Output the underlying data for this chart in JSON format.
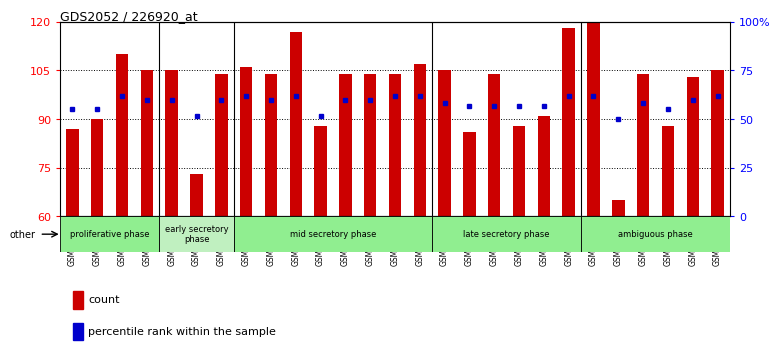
{
  "title": "GDS2052 / 226920_at",
  "samples": [
    "GSM109814",
    "GSM109815",
    "GSM109816",
    "GSM109817",
    "GSM109820",
    "GSM109821",
    "GSM109822",
    "GSM109824",
    "GSM109825",
    "GSM109826",
    "GSM109827",
    "GSM109828",
    "GSM109829",
    "GSM109830",
    "GSM109831",
    "GSM109834",
    "GSM109835",
    "GSM109836",
    "GSM109837",
    "GSM109838",
    "GSM109839",
    "GSM109818",
    "GSM109819",
    "GSM109823",
    "GSM109832",
    "GSM109833",
    "GSM109840"
  ],
  "counts": [
    87,
    90,
    110,
    105,
    105,
    73,
    104,
    106,
    104,
    117,
    88,
    104,
    104,
    104,
    107,
    105,
    86,
    104,
    88,
    91,
    118,
    120,
    65,
    104,
    88,
    103,
    105
  ],
  "percentiles_left_axis": [
    93,
    93,
    97,
    96,
    96,
    91,
    96,
    97,
    96,
    97,
    91,
    96,
    96,
    97,
    97,
    95,
    94,
    94,
    94,
    94,
    97,
    97,
    90,
    95,
    93,
    96,
    97
  ],
  "ylim_left": [
    60,
    120
  ],
  "yticks_left": [
    60,
    75,
    90,
    105,
    120
  ],
  "ylim_right": [
    0,
    100
  ],
  "yticks_right": [
    0,
    25,
    50,
    75,
    100
  ],
  "bar_color": "#cc0000",
  "dot_color": "#0000cc",
  "bg_color": "#ffffff",
  "phase_boundary_indices": [
    3.5,
    6.5,
    14.5,
    20.5
  ],
  "phases": [
    {
      "name": "proliferative phase",
      "color": "#90EE90",
      "start": 0,
      "end": 3
    },
    {
      "name": "early secretory\nphase",
      "color": "#c0f0c0",
      "start": 4,
      "end": 6
    },
    {
      "name": "mid secretory phase",
      "color": "#90EE90",
      "start": 7,
      "end": 14
    },
    {
      "name": "late secretory phase",
      "color": "#90EE90",
      "start": 15,
      "end": 20
    },
    {
      "name": "ambiguous phase",
      "color": "#90EE90",
      "start": 21,
      "end": 26
    }
  ]
}
